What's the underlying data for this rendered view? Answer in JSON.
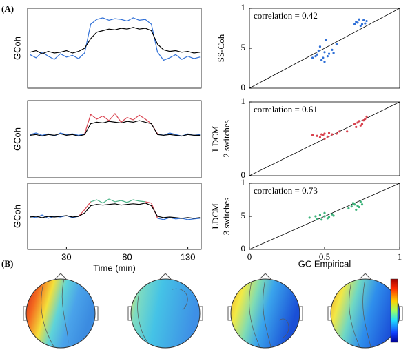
{
  "panel_labels": [
    "(A)",
    "(B)"
  ],
  "chart_data": [
    {
      "type": "line",
      "ylabel": "GCoh",
      "xlim": [
        -2,
        141
      ],
      "ylim": [
        0,
        1
      ],
      "x": [
        0,
        5,
        10,
        15,
        20,
        25,
        30,
        35,
        40,
        45,
        50,
        55,
        60,
        65,
        70,
        75,
        80,
        85,
        90,
        95,
        100,
        105,
        110,
        115,
        120,
        125,
        130,
        135,
        140
      ],
      "series": [
        {
          "color": "#2f6fd6",
          "values": [
            0.42,
            0.38,
            0.45,
            0.4,
            0.36,
            0.43,
            0.39,
            0.41,
            0.37,
            0.44,
            0.8,
            0.86,
            0.88,
            0.85,
            0.87,
            0.86,
            0.84,
            0.88,
            0.85,
            0.86,
            0.8,
            0.45,
            0.35,
            0.38,
            0.42,
            0.36,
            0.4,
            0.37,
            0.39
          ]
        },
        {
          "color": "#000000",
          "values": [
            0.45,
            0.47,
            0.43,
            0.46,
            0.44,
            0.45,
            0.47,
            0.44,
            0.46,
            0.5,
            0.62,
            0.7,
            0.72,
            0.74,
            0.73,
            0.75,
            0.74,
            0.76,
            0.74,
            0.75,
            0.72,
            0.55,
            0.48,
            0.46,
            0.47,
            0.45,
            0.46,
            0.44,
            0.45
          ]
        }
      ]
    },
    {
      "type": "line",
      "ylabel": "GCoh",
      "xlim": [
        -2,
        141
      ],
      "ylim": [
        0,
        1
      ],
      "x": [
        0,
        5,
        10,
        15,
        20,
        25,
        30,
        35,
        40,
        45,
        50,
        55,
        60,
        65,
        70,
        75,
        80,
        85,
        90,
        95,
        100,
        105,
        110,
        115,
        120,
        125,
        130,
        135,
        140
      ],
      "series": [
        {
          "color": "#2f6fd6",
          "values": [
            0.56,
            0.58,
            0.55,
            0.57,
            0.54,
            0.58,
            0.56,
            0.57,
            0.55,
            0.57,
            null,
            null,
            null,
            null,
            null,
            null,
            null,
            null,
            null,
            null,
            null,
            0.57,
            0.55,
            0.58,
            0.56,
            0.54,
            0.57,
            0.55,
            0.56
          ]
        },
        {
          "color": "#d9434f",
          "values": [
            null,
            null,
            null,
            null,
            null,
            null,
            null,
            null,
            null,
            0.57,
            0.82,
            0.76,
            0.8,
            0.74,
            0.83,
            0.72,
            0.78,
            0.75,
            0.81,
            0.76,
            0.7,
            0.57,
            null,
            null,
            null,
            null,
            null,
            null,
            null
          ]
        },
        {
          "color": "#000000",
          "values": [
            0.55,
            0.56,
            0.54,
            0.56,
            0.55,
            0.57,
            0.55,
            0.56,
            0.54,
            0.56,
            0.7,
            0.72,
            0.71,
            0.73,
            0.72,
            0.71,
            0.73,
            0.72,
            0.74,
            0.72,
            0.7,
            0.56,
            0.55,
            0.56,
            0.55,
            0.54,
            0.56,
            0.55,
            0.55
          ]
        }
      ]
    },
    {
      "type": "line",
      "ylabel": "GCoh",
      "xlim": [
        -2,
        141
      ],
      "ylim": [
        0,
        1
      ],
      "xticks": [
        30,
        80,
        130
      ],
      "xlabel": "Time (min)",
      "x": [
        0,
        5,
        10,
        15,
        20,
        25,
        30,
        35,
        40,
        45,
        50,
        55,
        60,
        65,
        70,
        75,
        80,
        85,
        90,
        95,
        100,
        105,
        110,
        115,
        120,
        125,
        130,
        135,
        140
      ],
      "series": [
        {
          "color": "#2f6fd6",
          "values": [
            0.5,
            0.48,
            0.52,
            0.47,
            0.5,
            0.49,
            0.51,
            0.48,
            0.5,
            null,
            null,
            null,
            null,
            null,
            null,
            null,
            null,
            null,
            null,
            null,
            null,
            0.47,
            0.45,
            0.48,
            0.46,
            0.47,
            0.45,
            0.46,
            0.47
          ]
        },
        {
          "color": "#d9434f",
          "values": [
            null,
            null,
            null,
            null,
            null,
            null,
            null,
            null,
            0.5,
            0.6,
            0.72,
            null,
            null,
            null,
            null,
            null,
            null,
            null,
            null,
            0.72,
            0.7,
            0.47,
            null,
            null,
            null,
            null,
            null,
            null,
            null
          ]
        },
        {
          "color": "#4fb58a",
          "values": [
            null,
            null,
            null,
            null,
            null,
            null,
            null,
            null,
            null,
            null,
            0.72,
            0.75,
            0.7,
            0.76,
            0.72,
            0.74,
            0.71,
            0.75,
            0.73,
            0.72,
            null,
            null,
            null,
            null,
            null,
            null,
            null,
            null,
            null
          ]
        },
        {
          "color": "#000000",
          "values": [
            0.49,
            0.5,
            0.48,
            0.5,
            0.49,
            0.5,
            0.51,
            0.49,
            0.5,
            0.55,
            0.66,
            0.68,
            0.67,
            0.68,
            0.69,
            0.67,
            0.68,
            0.69,
            0.68,
            0.7,
            0.66,
            0.5,
            0.48,
            0.49,
            0.48,
            0.47,
            0.48,
            0.47,
            0.48
          ]
        }
      ]
    },
    {
      "type": "scatter",
      "ylabel": "SS-Coh",
      "annotation": "correlation = 0.42",
      "color": "#2f6fd6",
      "xlim": [
        0,
        1
      ],
      "ylim": [
        0,
        1
      ],
      "yticks": [
        0,
        {
          "value": 0.5,
          "label": "5"
        },
        1
      ],
      "x": [
        0.42,
        0.45,
        0.48,
        0.5,
        0.52,
        0.55,
        0.47,
        0.5,
        0.53,
        0.44,
        0.58,
        0.51,
        0.49,
        0.56,
        0.46,
        0.7,
        0.72,
        0.74,
        0.76,
        0.78,
        0.73,
        0.75,
        0.71,
        0.77
      ],
      "values": [
        0.38,
        0.42,
        0.35,
        0.45,
        0.4,
        0.48,
        0.52,
        0.33,
        0.43,
        0.4,
        0.55,
        0.6,
        0.38,
        0.44,
        0.47,
        0.8,
        0.82,
        0.78,
        0.85,
        0.84,
        0.86,
        0.8,
        0.83,
        0.81
      ]
    },
    {
      "type": "scatter",
      "ylabel": "LDCM",
      "ylabel2": "2 switches",
      "annotation": "correlation = 0.61",
      "color": "#d9434f",
      "xlim": [
        0,
        1
      ],
      "ylim": [
        0,
        1
      ],
      "yticks": [
        0,
        1
      ],
      "x": [
        0.42,
        0.45,
        0.48,
        0.5,
        0.52,
        0.55,
        0.47,
        0.5,
        0.53,
        0.58,
        0.6,
        0.49,
        0.7,
        0.72,
        0.74,
        0.76,
        0.78,
        0.73,
        0.75,
        0.71,
        0.77,
        0.65
      ],
      "values": [
        0.55,
        0.54,
        0.56,
        0.57,
        0.53,
        0.56,
        0.52,
        0.5,
        0.58,
        0.57,
        0.6,
        0.55,
        0.7,
        0.72,
        0.68,
        0.75,
        0.8,
        0.74,
        0.7,
        0.66,
        0.77,
        0.6
      ]
    },
    {
      "type": "scatter",
      "ylabel": "LDCM",
      "ylabel2": "3 switches",
      "annotation": "correlation = 0.73",
      "color": "#3cb37a",
      "xlim": [
        0,
        1
      ],
      "ylim": [
        0,
        1
      ],
      "yticks": [
        0,
        {
          "value": 0.5,
          "label": "5"
        },
        1
      ],
      "xticks": [
        0,
        0.5,
        1
      ],
      "xlabel": "GC Empirical",
      "x": [
        0.4,
        0.44,
        0.47,
        0.5,
        0.52,
        0.55,
        0.48,
        0.5,
        0.53,
        0.45,
        0.56,
        0.66,
        0.68,
        0.7,
        0.72,
        0.74,
        0.71,
        0.73,
        0.69,
        0.75
      ],
      "values": [
        0.48,
        0.5,
        0.52,
        0.5,
        0.47,
        0.53,
        0.45,
        0.55,
        0.49,
        0.46,
        0.51,
        0.62,
        0.65,
        0.68,
        0.66,
        0.72,
        0.6,
        0.64,
        0.7,
        0.68
      ]
    }
  ]
}
